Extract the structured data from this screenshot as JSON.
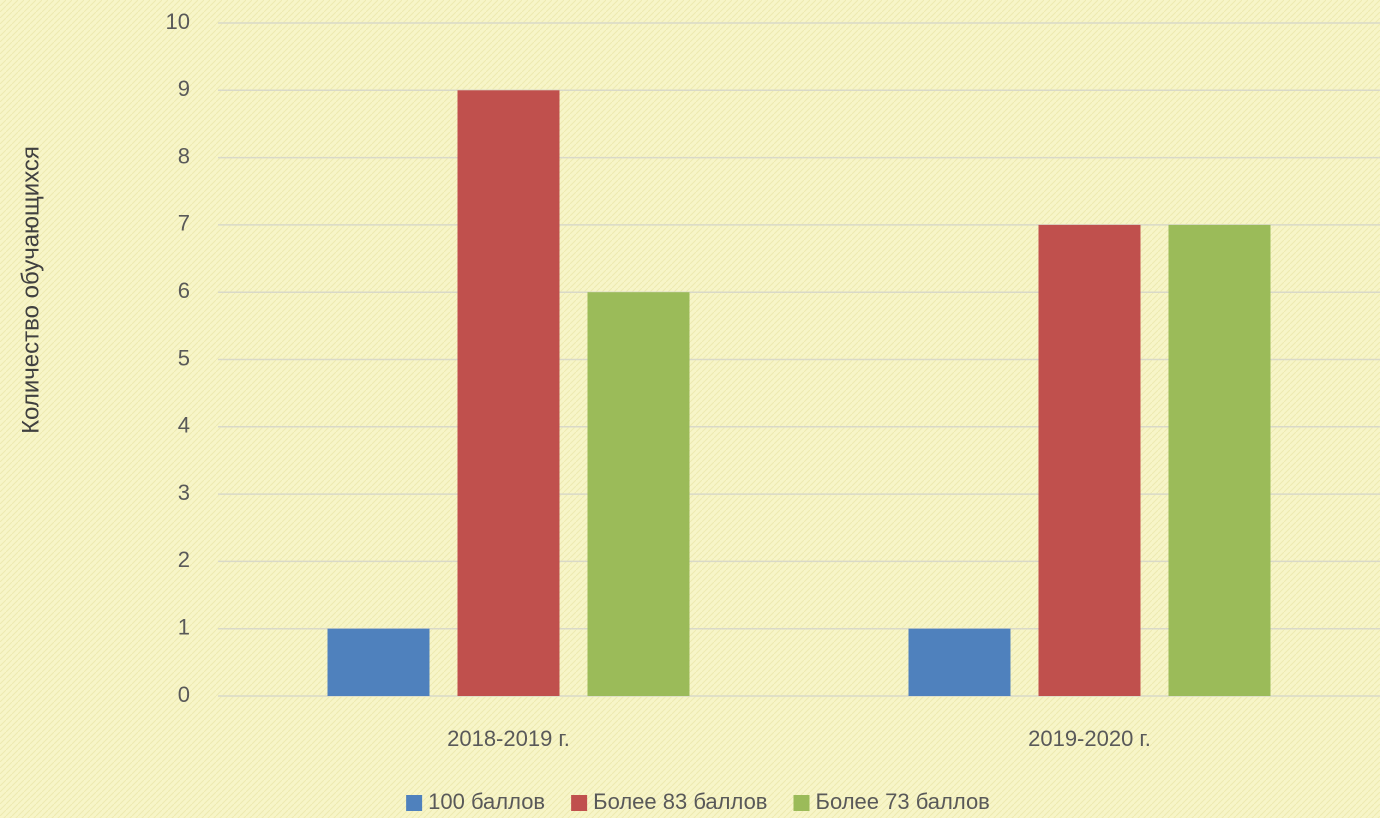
{
  "chart_data": {
    "type": "bar",
    "y_label": "Количество обучающихся",
    "categories": [
      "2018-2019 г.",
      "2019-2020 г."
    ],
    "series": [
      {
        "name": "100 баллов",
        "color": "#4f81bd",
        "values": [
          1,
          1
        ]
      },
      {
        "name": "Более 83 баллов",
        "color": "#c0504d",
        "values": [
          9,
          7
        ]
      },
      {
        "name": "Более 73 баллов",
        "color": "#9bbb59",
        "values": [
          6,
          7
        ]
      }
    ],
    "ylim": [
      0,
      10
    ],
    "yticks": [
      0,
      1,
      2,
      3,
      4,
      5,
      6,
      7,
      8,
      9,
      10
    ],
    "grid": true,
    "legend": "bottom"
  }
}
